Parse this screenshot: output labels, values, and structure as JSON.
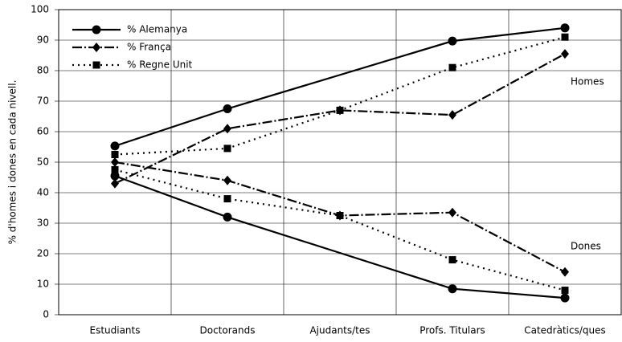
{
  "chart_data": {
    "type": "line",
    "ylabel": "% d'homes i dones en cada nivell.",
    "categories": [
      "Estudiants",
      "Doctorands",
      "Ajudants/tes",
      "Profs. Titulars",
      "Catedràtics/ques"
    ],
    "ylim": [
      0,
      100
    ],
    "yticks": [
      0,
      10,
      20,
      30,
      40,
      50,
      60,
      70,
      80,
      90,
      100
    ],
    "grid": true,
    "legend": "top-left",
    "connect_gaps": true,
    "annotations": [
      "Homes",
      "Dones"
    ],
    "series": [
      {
        "name": "% Alemanya",
        "color": "#000000",
        "marker": "circle",
        "dash": "solid",
        "values": [
          55.3,
          67.5,
          null,
          89.7,
          94
        ]
      },
      {
        "name": "% França",
        "color": "#000000",
        "marker": "diamond",
        "dash": "dashdot",
        "values": [
          43,
          61,
          67,
          65.5,
          85.5
        ]
      },
      {
        "name": "% Regne Unit",
        "color": "#000000",
        "marker": "square",
        "dash": "dotted",
        "values": [
          52.5,
          54.5,
          67,
          81,
          91
        ]
      },
      {
        "color": "#000000",
        "marker": "circle",
        "dash": "solid",
        "values": [
          45.5,
          32,
          null,
          8.5,
          5.5
        ]
      },
      {
        "color": "#000000",
        "marker": "diamond",
        "dash": "dashdot",
        "values": [
          50,
          44,
          32.5,
          33.5,
          14
        ]
      },
      {
        "color": "#000000",
        "marker": "square",
        "dash": "dotted",
        "values": [
          47.5,
          38,
          32.5,
          18,
          8
        ]
      }
    ]
  }
}
